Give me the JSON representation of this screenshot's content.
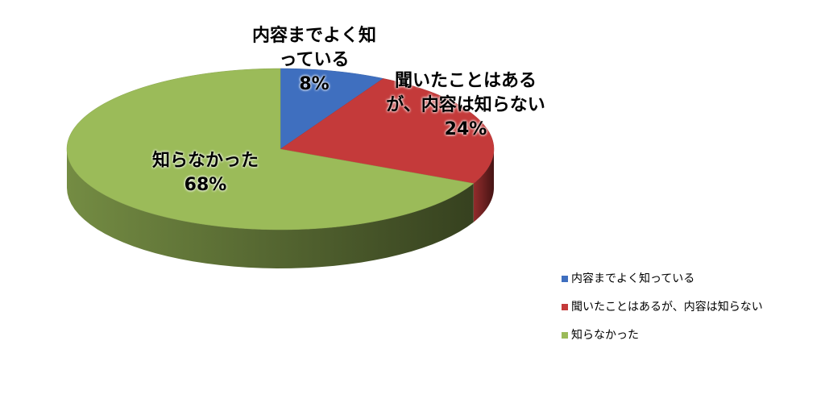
{
  "chart_data": {
    "type": "pie",
    "style": "3d",
    "categories": [
      "内容までよく知っている",
      "聞いたことはあるが、内容は知らない",
      "知らなかった"
    ],
    "values": [
      8,
      24,
      68
    ],
    "value_labels": [
      "8%",
      "24%",
      "68%"
    ],
    "colors": [
      "#3f6fbf",
      "#c43a3a",
      "#9bbb59"
    ],
    "legend": "right"
  }
}
